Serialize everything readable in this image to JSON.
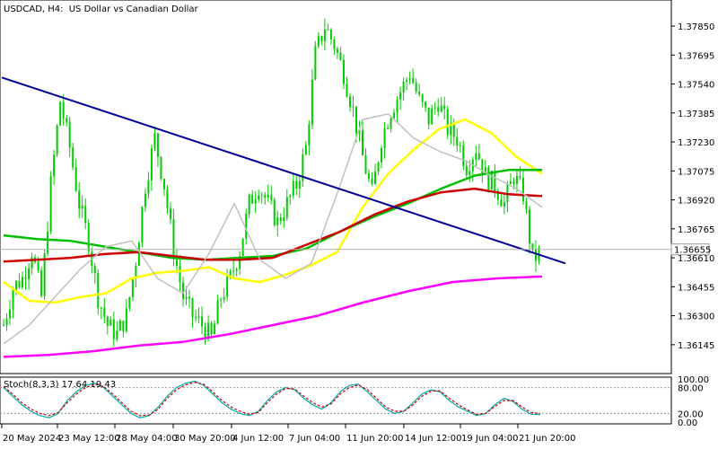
{
  "header": {
    "symbol": "USDCAD",
    "timeframe": "H4",
    "description": "US Dollar vs Canadian Dollar"
  },
  "colors": {
    "background": "#ffffff",
    "candle": "#00cc00",
    "trendline": "#000099",
    "ma_yellow": "#ffff00",
    "ma_green": "#00c000",
    "ma_red": "#cc0000",
    "ma_magenta": "#ff00ff",
    "ma_gray": "#c0c0c0",
    "stoch_main": "#00aaaa",
    "stoch_signal": "#cc0000",
    "current_price_line": "#b0b0b0",
    "current_price_label_bg": "#ffffff"
  },
  "current_price": {
    "label": "1.36655",
    "value": 1.36655
  },
  "stochastic": {
    "label": "Stoch(8,3,3) 17.64 19.43",
    "levels": [
      "100.00",
      "80.00",
      "20.00",
      "0.00"
    ]
  },
  "chart_data": {
    "type": "candlestick",
    "ylim": [
      1.36,
      1.3798
    ],
    "y_ticks": [
      1.3785,
      1.37695,
      1.3754,
      1.37385,
      1.3723,
      1.37075,
      1.3692,
      1.36765,
      1.3661,
      1.36455,
      1.363,
      1.36145
    ],
    "y_tick_labels": [
      "1.37850",
      "1.37695",
      "1.37540",
      "1.37385",
      "1.37230",
      "1.37075",
      "1.36920",
      "1.36765",
      "1.36610",
      "1.36455",
      "1.36300",
      "1.36145"
    ],
    "x_tick_labels": [
      "20 May 2024",
      "23 May 12:00",
      "28 May 04:00",
      "30 May 20:00",
      "4 Jun 12:00",
      "7 Jun 04:00",
      "11 Jun 20:00",
      "14 Jun 12:00",
      "19 Jun 04:00",
      "21 Jun 20:00"
    ],
    "close_path": [
      1.3625,
      1.3645,
      1.365,
      1.3665,
      1.364,
      1.37,
      1.3745,
      1.372,
      1.369,
      1.367,
      1.364,
      1.3625,
      1.362,
      1.363,
      1.366,
      1.37,
      1.3725,
      1.37,
      1.3665,
      1.364,
      1.363,
      1.3625,
      1.3618,
      1.364,
      1.365,
      1.3665,
      1.369,
      1.37,
      1.369,
      1.368,
      1.369,
      1.37,
      1.372,
      1.377,
      1.3785,
      1.3775,
      1.376,
      1.374,
      1.3715,
      1.3695,
      1.3725,
      1.374,
      1.375,
      1.376,
      1.3745,
      1.3735,
      1.3745,
      1.373,
      1.3725,
      1.371,
      1.372,
      1.3705,
      1.37,
      1.369,
      1.3705,
      1.3695,
      1.366,
      1.3665
    ],
    "trendline": {
      "start": 1.37575,
      "end": 1.3658
    },
    "series": [
      {
        "color": "#ffff00",
        "values": [
          1.3648,
          1.3638,
          1.3637,
          1.364,
          1.3642,
          1.365,
          1.3653,
          1.3654,
          1.3656,
          1.365,
          1.3648,
          1.3652,
          1.3657,
          1.3664,
          1.3688,
          1.3706,
          1.3719,
          1.373,
          1.3735,
          1.3728,
          1.3715,
          1.3706
        ]
      },
      {
        "color": "#00c000",
        "values": [
          1.3673,
          1.3671,
          1.367,
          1.3667,
          1.3664,
          1.3661,
          1.366,
          1.3661,
          1.3662,
          1.3666,
          1.3675,
          1.3683,
          1.369,
          1.3698,
          1.3705,
          1.3708,
          1.3708
        ]
      },
      {
        "color": "#cc0000",
        "values": [
          1.3659,
          1.366,
          1.3661,
          1.3663,
          1.3664,
          1.3662,
          1.366,
          1.366,
          1.3661,
          1.3668,
          1.3675,
          1.3684,
          1.3691,
          1.3696,
          1.3698,
          1.3695,
          1.3694
        ]
      },
      {
        "color": "#ff00ff",
        "values": [
          1.3608,
          1.3609,
          1.3611,
          1.3614,
          1.3616,
          1.362,
          1.3625,
          1.363,
          1.3637,
          1.3643,
          1.3648,
          1.365,
          1.3651
        ]
      },
      {
        "color": "#c0c0c0",
        "values": [
          1.3615,
          1.3625,
          1.364,
          1.3655,
          1.3667,
          1.367,
          1.365,
          1.3642,
          1.3663,
          1.369,
          1.366,
          1.365,
          1.3658,
          1.3695,
          1.3735,
          1.3738,
          1.3725,
          1.3718,
          1.3713,
          1.3705,
          1.3698,
          1.3688
        ]
      }
    ],
    "stoch_series": [
      {
        "color": "#00aaaa",
        "values": [
          80,
          60,
          40,
          25,
          15,
          10,
          20,
          50,
          70,
          85,
          90,
          80,
          60,
          40,
          20,
          10,
          15,
          35,
          60,
          80,
          90,
          95,
          85,
          65,
          45,
          30,
          20,
          15,
          25,
          50,
          70,
          80,
          75,
          55,
          40,
          30,
          45,
          70,
          85,
          88,
          70,
          50,
          30,
          20,
          25,
          45,
          65,
          75,
          70,
          50,
          35,
          25,
          15,
          20,
          40,
          55,
          48,
          30,
          18,
          17.64
        ]
      },
      {
        "color": "#cc0000",
        "values": [
          82,
          65,
          45,
          30,
          20,
          15,
          22,
          45,
          65,
          80,
          88,
          82,
          65,
          45,
          25,
          15,
          16,
          30,
          55,
          75,
          86,
          92,
          88,
          70,
          50,
          35,
          25,
          18,
          22,
          45,
          65,
          78,
          77,
          60,
          45,
          35,
          42,
          65,
          80,
          86,
          75,
          55,
          35,
          25,
          25,
          40,
          60,
          72,
          72,
          55,
          40,
          28,
          18,
          20,
          36,
          50,
          50,
          35,
          22,
          19.43
        ]
      }
    ]
  }
}
